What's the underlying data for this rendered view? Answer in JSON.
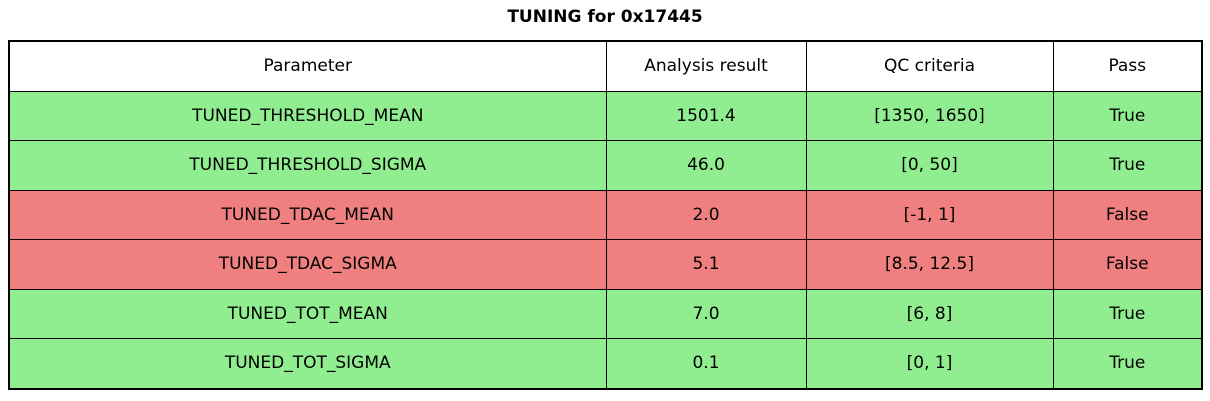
{
  "title": "TUNING for 0x17445",
  "colors": {
    "pass_row": "#90ee90",
    "fail_row": "#f08080",
    "header_row": "#ffffff",
    "border": "#000000",
    "text": "#000000"
  },
  "chart_data": {
    "type": "table",
    "title": "TUNING for 0x17445",
    "columns": [
      "Parameter",
      "Analysis result",
      "QC criteria",
      "Pass"
    ],
    "rows": [
      [
        "TUNED_THRESHOLD_MEAN",
        "1501.4",
        "[1350, 1650]",
        "True"
      ],
      [
        "TUNED_THRESHOLD_SIGMA",
        "46.0",
        "[0, 50]",
        "True"
      ],
      [
        "TUNED_TDAC_MEAN",
        "2.0",
        "[-1, 1]",
        "False"
      ],
      [
        "TUNED_TDAC_SIGMA",
        "5.1",
        "[8.5, 12.5]",
        "False"
      ],
      [
        "TUNED_TOT_MEAN",
        "7.0",
        "[6, 8]",
        "True"
      ],
      [
        "TUNED_TOT_SIGMA",
        "0.1",
        "[0, 1]",
        "True"
      ]
    ],
    "row_status": [
      "pass",
      "pass",
      "fail",
      "fail",
      "pass",
      "pass"
    ],
    "legend_position": "none",
    "grid": "full-cell-borders"
  }
}
